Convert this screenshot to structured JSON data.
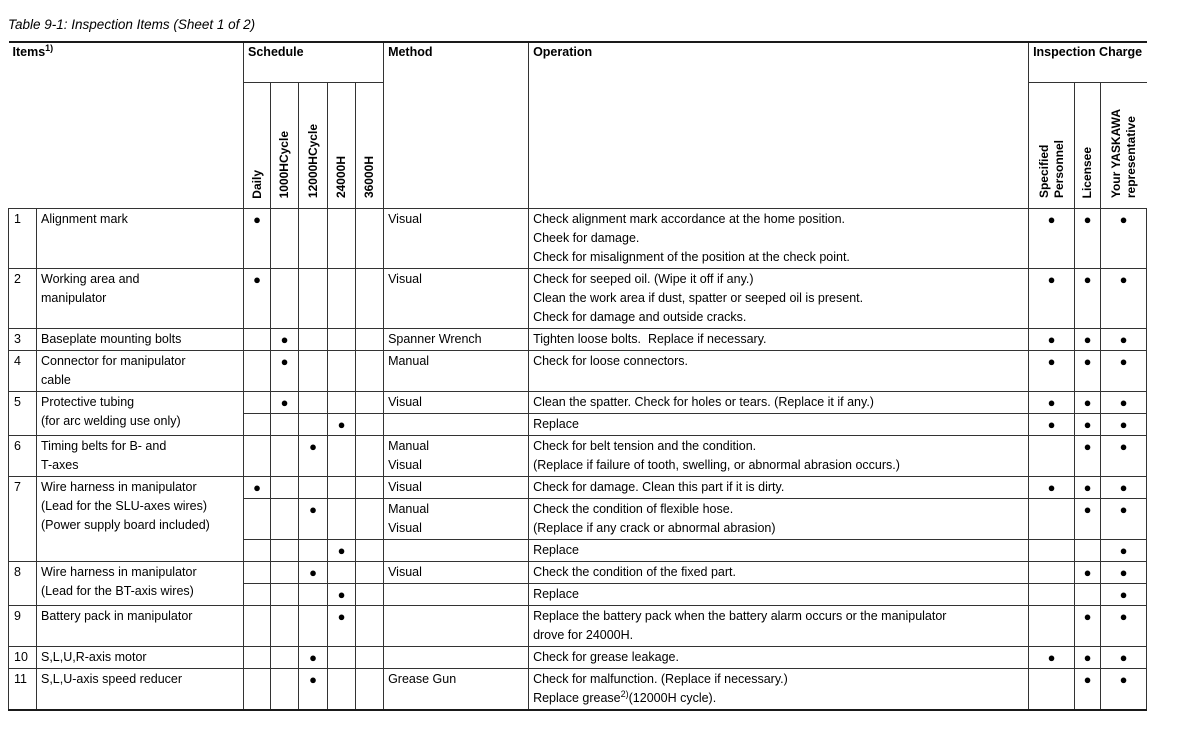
{
  "title": "Table 9-1: Inspection Items (Sheet 1 of 2)",
  "table": {
    "headers": {
      "items": "Items",
      "items_sup": "1)",
      "schedule": "Schedule",
      "schedule_cols": [
        "Daily",
        "1000HCycle",
        "12000HCycle",
        "24000H",
        "36000H"
      ],
      "method": "Method",
      "operation": "Operation",
      "inspection_charge": "Inspection Charge",
      "charge_cols": [
        "Specified\nPersonnel",
        "Licensee",
        "Your YASKAWA\nrepresentative"
      ]
    },
    "rows": [
      {
        "num": "1",
        "item": [
          "Alignment mark"
        ],
        "subs": [
          {
            "sched": 0,
            "method": [
              "Visual"
            ],
            "operation": [
              "Check alignment mark accordance at the home position.",
              "Cheek for damage.",
              "Check for misalignment of the position at the check point."
            ],
            "charge": [
              1,
              1,
              1
            ]
          }
        ]
      },
      {
        "num": "2",
        "item": [
          "Working area and",
          "manipulator"
        ],
        "subs": [
          {
            "sched": 0,
            "method": [
              "Visual"
            ],
            "operation": [
              "Check for seeped oil. (Wipe it off if any.)",
              "Clean the work area if dust, spatter or seeped oil is present.",
              "Check for damage and outside cracks."
            ],
            "charge": [
              1,
              1,
              1
            ]
          }
        ]
      },
      {
        "num": "3",
        "item": [
          "Baseplate mounting bolts"
        ],
        "subs": [
          {
            "sched": 1,
            "method": [
              "Spanner Wrench"
            ],
            "operation": [
              "Tighten loose bolts.  Replace if necessary."
            ],
            "charge": [
              1,
              1,
              1
            ]
          }
        ]
      },
      {
        "num": "4",
        "item": [
          "Connector for manipulator",
          "cable"
        ],
        "subs": [
          {
            "sched": 1,
            "method": [
              "Manual"
            ],
            "operation": [
              "Check for loose connectors."
            ],
            "charge": [
              1,
              1,
              1
            ]
          }
        ]
      },
      {
        "num": "5",
        "item": [
          "Protective tubing",
          "(for arc welding use only)"
        ],
        "subs": [
          {
            "sched": 1,
            "method": [
              "Visual"
            ],
            "operation": [
              "Clean the spatter. Check for holes or tears. (Replace it if any.)"
            ],
            "charge": [
              1,
              1,
              1
            ]
          },
          {
            "sched": 3,
            "method": [],
            "operation": [
              "Replace"
            ],
            "charge": [
              1,
              1,
              1
            ]
          }
        ]
      },
      {
        "num": "6",
        "item": [
          "Timing belts for B- and",
          "T-axes"
        ],
        "subs": [
          {
            "sched": 2,
            "method": [
              "Manual",
              "Visual"
            ],
            "operation": [
              "Check for belt tension and the condition.",
              "(Replace if failure of tooth, swelling, or abnormal abrasion occurs.)"
            ],
            "charge": [
              0,
              1,
              1
            ]
          }
        ]
      },
      {
        "num": "7",
        "item": [
          "Wire harness in manipulator",
          "(Lead for the SLU-axes wires)",
          "(Power supply board included)"
        ],
        "subs": [
          {
            "sched": 0,
            "method": [
              "Visual"
            ],
            "operation": [
              "Check for damage. Clean this part if it is dirty."
            ],
            "charge": [
              1,
              1,
              1
            ]
          },
          {
            "sched": 2,
            "method": [
              "Manual",
              "Visual"
            ],
            "operation": [
              "Check the condition of flexible hose.",
              "(Replace if any crack or abnormal abrasion)"
            ],
            "charge": [
              0,
              1,
              1
            ]
          },
          {
            "sched": 3,
            "method": [],
            "operation": [
              "Replace"
            ],
            "charge": [
              0,
              0,
              1
            ]
          }
        ]
      },
      {
        "num": "8",
        "item": [
          "Wire harness in manipulator",
          "(Lead for the BT-axis wires)"
        ],
        "subs": [
          {
            "sched": 2,
            "method": [
              "Visual"
            ],
            "operation": [
              "Check the condition of the fixed part."
            ],
            "charge": [
              0,
              1,
              1
            ]
          },
          {
            "sched": 3,
            "method": [],
            "operation": [
              "Replace"
            ],
            "charge": [
              0,
              0,
              1
            ]
          }
        ]
      },
      {
        "num": "9",
        "item": [
          "Battery pack in manipulator"
        ],
        "subs": [
          {
            "sched": 3,
            "method": [],
            "operation": [
              "Replace the battery pack when the battery alarm occurs or the manipulator",
              "drove for 24000H."
            ],
            "charge": [
              0,
              1,
              1
            ]
          }
        ]
      },
      {
        "num": "10",
        "item": [
          "S,L,U,R-axis motor"
        ],
        "subs": [
          {
            "sched": 2,
            "method": [],
            "operation": [
              "Check for grease leakage."
            ],
            "charge": [
              1,
              1,
              1
            ]
          }
        ]
      },
      {
        "num": "11",
        "item": [
          "S,L,U-axis speed reducer"
        ],
        "subs": [
          {
            "sched": 2,
            "method": [
              "Grease Gun"
            ],
            "operation": [
              "Check for malfunction. (Replace if necessary.)",
              "Replace grease^{2)}(12000H cycle)."
            ],
            "charge": [
              0,
              1,
              1
            ]
          }
        ]
      }
    ]
  }
}
